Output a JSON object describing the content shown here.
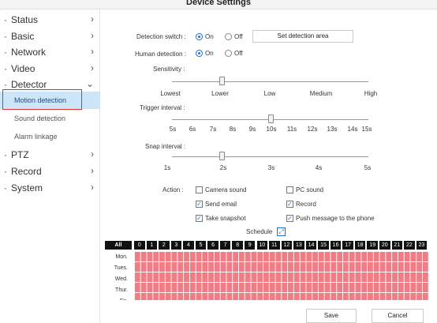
{
  "window": {
    "title": "Device Settings"
  },
  "sidebar": {
    "items": [
      {
        "label": "Status",
        "chevron": "›"
      },
      {
        "label": "Basic",
        "chevron": "›"
      },
      {
        "label": "Network",
        "chevron": "›"
      },
      {
        "label": "Video",
        "chevron": "›"
      },
      {
        "label": "Detector",
        "chevron": "⌄"
      },
      {
        "label": "PTZ",
        "chevron": "›"
      },
      {
        "label": "Record",
        "chevron": "›"
      },
      {
        "label": "System",
        "chevron": "›"
      }
    ],
    "bullet": "·",
    "detector_sub": [
      {
        "label": "Motion detection",
        "active": true
      },
      {
        "label": "Sound detection",
        "active": false
      },
      {
        "label": "Alarm linkage",
        "active": false
      }
    ]
  },
  "detection_switch": {
    "label": "Detection switch :",
    "on": "On",
    "off": "Off",
    "value": "On",
    "area_button": "Set detection area"
  },
  "human_detection": {
    "label": "Human detection :",
    "on": "On",
    "off": "Off",
    "value": "On"
  },
  "sensitivity": {
    "label": "Sensitivity :",
    "ticks": [
      "Lowest",
      "Lower",
      "Low",
      "Medium",
      "High"
    ],
    "value": "Lower"
  },
  "trigger_interval": {
    "label": "Trigger interval :",
    "ticks": [
      "5s",
      "6s",
      "7s",
      "8s",
      "9s",
      "10s",
      "11s",
      "12s",
      "13s",
      "14s",
      "15s"
    ],
    "value": "10s"
  },
  "snap_interval": {
    "label": "Snap interval :",
    "ticks": [
      "1s",
      "2s",
      "3s",
      "4s",
      "5s"
    ],
    "value": "2s"
  },
  "action": {
    "label": "Action :",
    "options": [
      {
        "label": "Camera sound",
        "checked": false
      },
      {
        "label": "PC sound",
        "checked": false
      },
      {
        "label": "Send email",
        "checked": true
      },
      {
        "label": "Record",
        "checked": true
      },
      {
        "label": "Take snapshot",
        "checked": true
      },
      {
        "label": "Push message to the phone",
        "checked": true
      }
    ],
    "check_glyph": "✓"
  },
  "schedule": {
    "label": "Schedule",
    "expand_icon": "expand-icon",
    "all_label": "All",
    "hours": [
      "0",
      "1",
      "2",
      "3",
      "4",
      "5",
      "6",
      "7",
      "8",
      "9",
      "10",
      "11",
      "12",
      "13",
      "14",
      "15",
      "16",
      "17",
      "18",
      "19",
      "20",
      "21",
      "22",
      "23"
    ],
    "days": [
      "Mon.",
      "Tues.",
      "Wed.",
      "Thur.",
      "Fri."
    ],
    "all_selected": true,
    "selected_color": "#f07c86"
  },
  "buttons": {
    "save": "Save",
    "cancel": "Cancel"
  }
}
